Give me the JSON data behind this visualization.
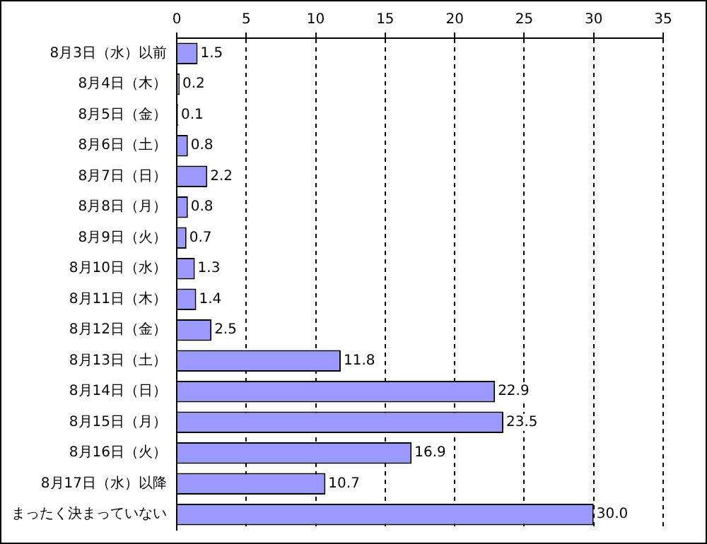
{
  "chart_data": {
    "type": "bar",
    "orientation": "horizontal",
    "categories": [
      "8月3日（水）以前",
      "8月4日（木）",
      "8月5日（金）",
      "8月6日（土）",
      "8月7日（日）",
      "8月8日（月）",
      "8月9日（火）",
      "8月10日（水）",
      "8月11日（木）",
      "8月12日（金）",
      "8月13日（土）",
      "8月14日（日）",
      "8月15日（月）",
      "8月16日（火）",
      "8月17日（水）以降",
      "まったく決まっていない"
    ],
    "values": [
      1.5,
      0.2,
      0.1,
      0.8,
      2.2,
      0.8,
      0.7,
      1.3,
      1.4,
      2.5,
      11.8,
      22.9,
      23.5,
      16.9,
      10.7,
      30.0
    ],
    "value_labels": [
      "1.5",
      "0.2",
      "0.1",
      "0.8",
      "2.2",
      "0.8",
      "0.7",
      "1.3",
      "1.4",
      "2.5",
      "11.8",
      "22.9",
      "23.5",
      "16.9",
      "10.7",
      "30.0"
    ],
    "color": "#9999ff",
    "xlim": [
      0,
      35
    ],
    "xticks": [
      0,
      5,
      10,
      15,
      20,
      25,
      30,
      35
    ],
    "grid": "x"
  }
}
